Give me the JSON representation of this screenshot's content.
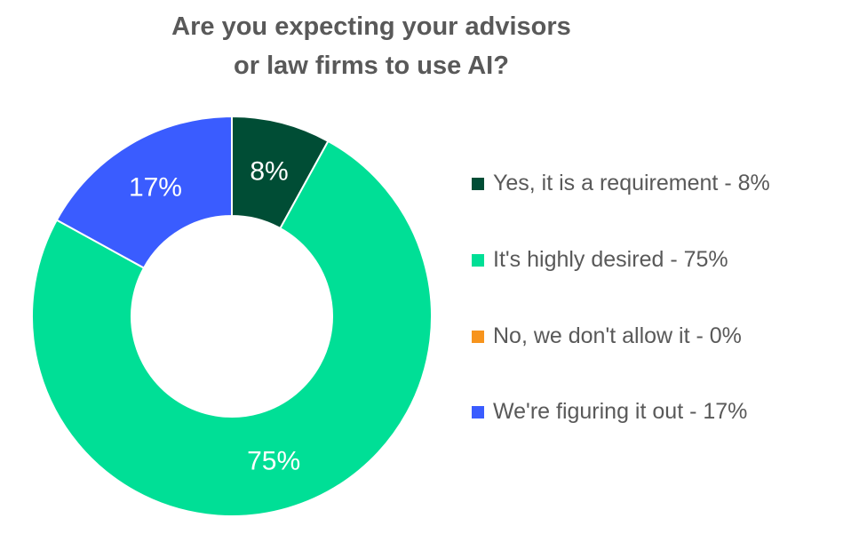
{
  "chart_data": {
    "type": "pie",
    "variant": "donut",
    "title_lines": [
      "Are you expecting your advisors",
      "or law firms to use AI?"
    ],
    "categories": [
      "Yes, it is a requirement",
      "It's highly desired",
      "No, we don't allow it",
      "We're figuring it out"
    ],
    "values": [
      8,
      75,
      0,
      17
    ],
    "data_labels": [
      "8%",
      "75%",
      "",
      "17%"
    ],
    "legend_labels": [
      "Yes, it is a requirement - 8%",
      "It's highly desired - 75%",
      "No, we don't allow it - 0%",
      "We're figuring it out - 17%"
    ],
    "colors": [
      "#004d35",
      "#00df96",
      "#f7941d",
      "#3a5cff"
    ],
    "legend_position": "right"
  }
}
